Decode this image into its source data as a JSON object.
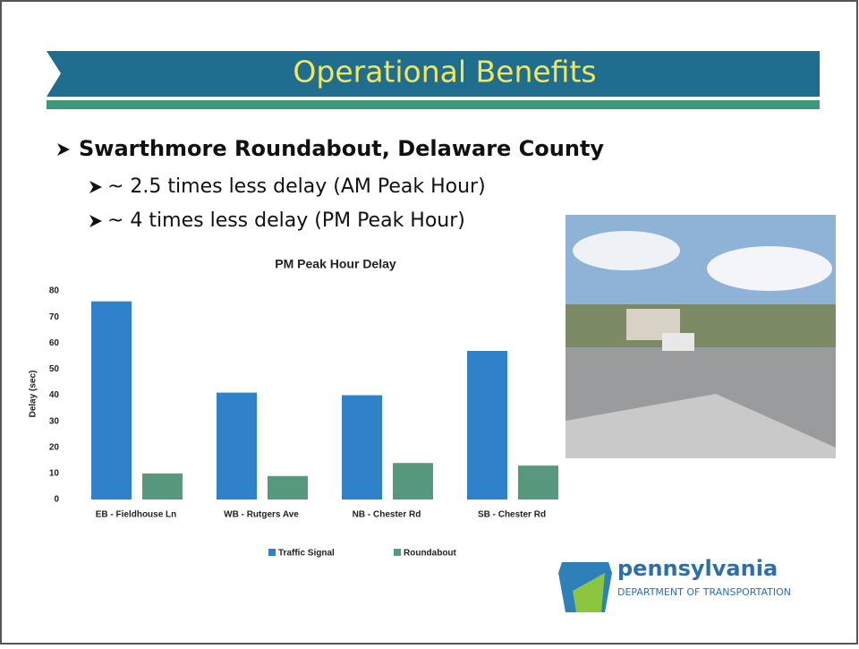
{
  "slide": {
    "title": "Operational Benefits",
    "bullet": "Swarthmore Roundabout, Delaware County",
    "sub_bullets": [
      "~ 2.5 times less delay (AM Peak Hour)",
      "~ 4 times less delay (PM Peak Hour)"
    ],
    "logo": {
      "name": "pennsylvania",
      "department": "DEPARTMENT OF TRANSPORTATION"
    }
  },
  "chart_data": {
    "type": "bar",
    "title": "PM Peak Hour Delay",
    "y_label": "Delay (sec)",
    "categories": [
      "EB - Fieldhouse Ln",
      "WB - Rutgers Ave",
      "NB - Chester Rd",
      "SB - Chester Rd"
    ],
    "series": [
      {
        "name": "Traffic Signal",
        "color": "#2f82c9",
        "values": [
          76,
          41,
          40,
          57
        ]
      },
      {
        "name": "Roundabout",
        "color": "#56997c",
        "values": [
          10,
          9,
          14,
          13
        ]
      }
    ],
    "ylim": [
      0,
      80
    ],
    "yticks": [
      0,
      10,
      20,
      30,
      40,
      50,
      60,
      70,
      80
    ],
    "grid": false
  }
}
